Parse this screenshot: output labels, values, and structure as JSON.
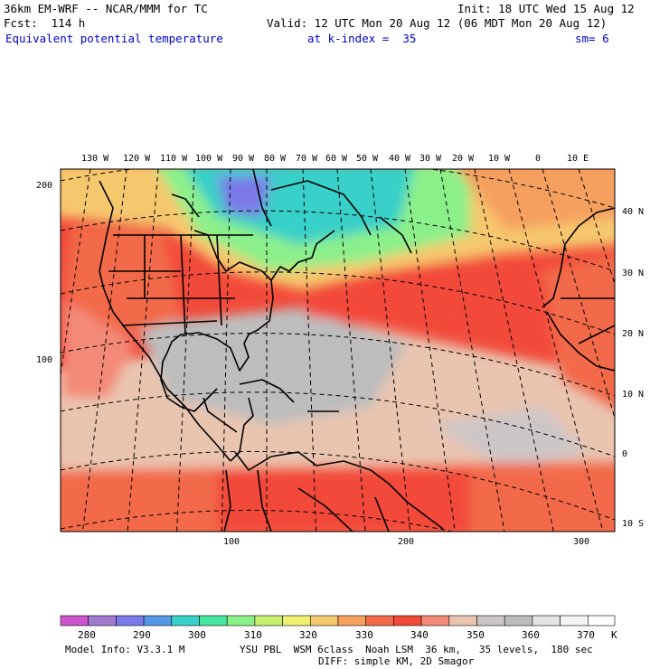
{
  "header": {
    "model_title": "36km EM-WRF -- NCAR/MMM for TC",
    "init": "Init: 18 UTC Wed 15 Aug 12",
    "fcst": "Fcst:  114 h",
    "valid": "Valid: 12 UTC Mon 20 Aug 12 (06 MDT Mon 20 Aug 12)",
    "field": "Equivalent potential temperature",
    "level": "at k-index =  35",
    "smooth": "sm= 6"
  },
  "axes": {
    "top_lon": [
      "130 W",
      "120 W",
      "110 W",
      "100 W",
      "90 W",
      "80 W",
      "70 W",
      "60 W",
      "50 W",
      "40 W",
      "30 W",
      "20 W",
      "10 W",
      "0",
      "10 E"
    ],
    "right_lat": [
      "40 N",
      "30 N",
      "20 N",
      "10 N",
      "0",
      "10 S"
    ],
    "left_grid": [
      "200",
      "100"
    ],
    "bottom_grid": [
      "100",
      "200",
      "300"
    ]
  },
  "colorbar": {
    "labels": [
      "280",
      "290",
      "300",
      "310",
      "320",
      "330",
      "340",
      "350",
      "360",
      "370"
    ],
    "unit": "K",
    "colors": [
      "#cc55cc",
      "#a07acc",
      "#7a7ae8",
      "#5599e6",
      "#38d0c8",
      "#45e6a0",
      "#8cf08a",
      "#c8f070",
      "#f0f070",
      "#f6c86e",
      "#f6a05e",
      "#f26a4a",
      "#f24a3a",
      "#f48a78",
      "#e9c5b0",
      "#cdc6c6",
      "#bdbdbd",
      "#e4e4e4",
      "#f4f4f4",
      "#ffffff"
    ]
  },
  "footer": {
    "model_info": "Model Info: V3.3.1 M",
    "physics": "YSU PBL  WSM 6class  Noah LSM  36 km,   35 levels,  180 sec",
    "diff": "DIFF: simple KM, 2D Smagor"
  }
}
